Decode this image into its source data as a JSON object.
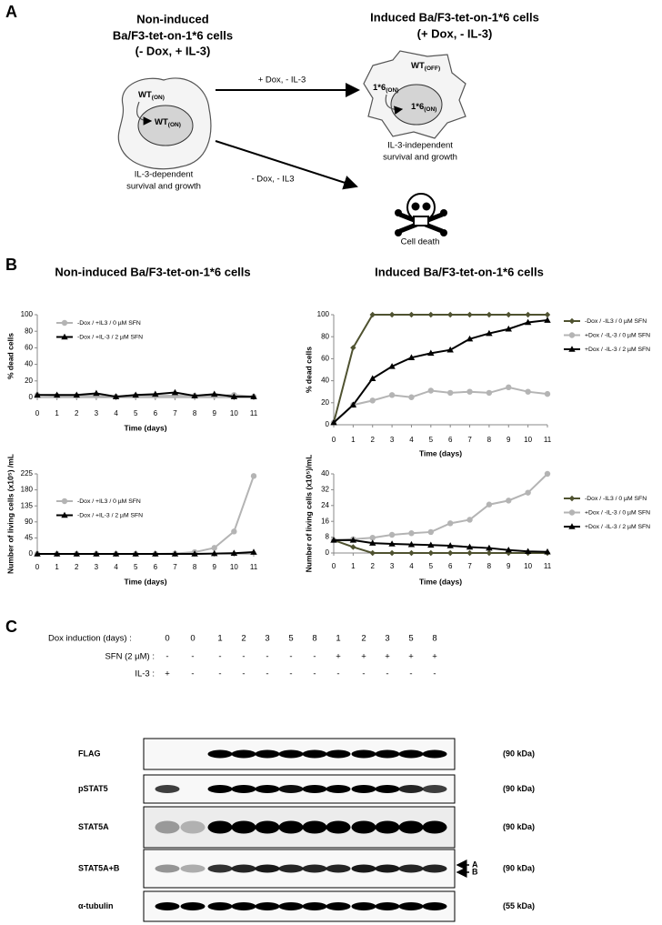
{
  "panel_a": {
    "label": "A",
    "left_title": [
      "Non-induced",
      "Ba/F3-tet-on-1*6 cells",
      "(- Dox, + IL-3)"
    ],
    "right_title": [
      "Induced Ba/F3-tet-on-1*6 cells",
      "(+ Dox, - IL-3)"
    ],
    "arrow_top": "+ Dox, - IL-3",
    "arrow_bottom": "- Dox, - IL3",
    "left_cell": {
      "outer": {
        "main": "WT",
        "sub": "(ON)"
      },
      "inner": {
        "main": "WT",
        "sub": "(ON)"
      },
      "caption": [
        "IL-3-dependent",
        "survival and growth"
      ]
    },
    "right_cell": {
      "wt": {
        "main": "WT",
        "sub": "(OFF)"
      },
      "outer": {
        "main": "1*6",
        "sub": "(ON)"
      },
      "inner": {
        "main": "1*6",
        "sub": "(ON)"
      },
      "caption": [
        "IL-3-independent",
        "survival and growth"
      ]
    },
    "death": "Cell death"
  },
  "panel_b": {
    "label": "B",
    "left_title": "Non-induced Ba/F3-tet-on-1*6 cells",
    "right_title": "Induced Ba/F3-tet-on-1*6 cells"
  },
  "chart_data": [
    {
      "type": "line",
      "xlabel": "Time (days)",
      "ylabel": "% dead cells",
      "x": [
        0,
        1,
        2,
        3,
        4,
        5,
        6,
        7,
        8,
        9,
        10,
        11
      ],
      "xlim": [
        0,
        11
      ],
      "xticks": [
        0,
        1,
        2,
        3,
        4,
        5,
        6,
        7,
        8,
        9,
        10,
        11
      ],
      "ylim": [
        0,
        100
      ],
      "yticks": [
        0,
        20,
        40,
        60,
        80,
        100
      ],
      "series": [
        {
          "name": "-Dox / +IL3  / 0 µM SFN",
          "color": "#b4b4b4",
          "marker": "circle",
          "values": [
            3,
            2,
            2,
            2,
            1,
            2,
            2,
            2,
            2,
            2,
            3,
            1
          ]
        },
        {
          "name": "-Dox / +IL-3  / 2 µM SFN",
          "color": "#000000",
          "marker": "triangle",
          "values": [
            3,
            3,
            3,
            5,
            1,
            3,
            4,
            6,
            2,
            4,
            1,
            1
          ]
        }
      ]
    },
    {
      "type": "line",
      "xlabel": "Time (days)",
      "ylabel": "% dead cells",
      "x": [
        0,
        1,
        2,
        3,
        4,
        5,
        6,
        7,
        8,
        9,
        10,
        11
      ],
      "xlim": [
        0,
        11
      ],
      "xticks": [
        0,
        1,
        2,
        3,
        4,
        5,
        6,
        7,
        8,
        9,
        10,
        11
      ],
      "ylim": [
        0,
        100
      ],
      "yticks": [
        0,
        20,
        40,
        60,
        80,
        100
      ],
      "series": [
        {
          "name": "-Dox / -IL3  / 0 µM SFN",
          "color": "#4f5230",
          "marker": "diamond",
          "values": [
            2,
            70,
            100,
            100,
            100,
            100,
            100,
            100,
            100,
            100,
            100,
            100
          ]
        },
        {
          "name": "+Dox / -IL-3  / 0 µM SFN",
          "color": "#b4b4b4",
          "marker": "circle",
          "values": [
            2,
            18,
            22,
            27,
            25,
            31,
            29,
            30,
            29,
            34,
            30,
            28
          ]
        },
        {
          "name": "+Dox / -IL-3  / 2 µM SFN",
          "color": "#000000",
          "marker": "triangle",
          "values": [
            2,
            18,
            42,
            53,
            61,
            65,
            68,
            78,
            83,
            87,
            93,
            95
          ]
        }
      ]
    },
    {
      "type": "line",
      "xlabel": "Time (days)",
      "ylabel": "Number of living cells (x10⁵) /mL",
      "x": [
        0,
        1,
        2,
        3,
        4,
        5,
        6,
        7,
        8,
        9,
        10,
        11
      ],
      "xlim": [
        0,
        11
      ],
      "xticks": [
        0,
        1,
        2,
        3,
        4,
        5,
        6,
        7,
        8,
        9,
        10,
        11
      ],
      "ylim": [
        0,
        225
      ],
      "yticks": [
        0,
        45,
        90,
        135,
        180,
        225
      ],
      "series": [
        {
          "name": "-Dox / +IL3  / 0 µM SFN",
          "color": "#b4b4b4",
          "marker": "circle",
          "values": [
            0,
            0,
            0,
            0,
            0,
            0,
            0,
            1,
            5,
            17,
            63,
            219
          ]
        },
        {
          "name": "-Dox / +IL-3  / 2 µM SFN",
          "color": "#000000",
          "marker": "triangle",
          "values": [
            0,
            0,
            0,
            0,
            0,
            0,
            0,
            0,
            0,
            1,
            2,
            5
          ]
        }
      ]
    },
    {
      "type": "line",
      "xlabel": "Time (days)",
      "ylabel": "Number of living cells (x10⁵)/mL",
      "x": [
        0,
        1,
        2,
        3,
        4,
        5,
        6,
        7,
        8,
        9,
        10,
        11
      ],
      "xlim": [
        0,
        11
      ],
      "xticks": [
        0,
        1,
        2,
        3,
        4,
        5,
        6,
        7,
        8,
        9,
        10,
        11
      ],
      "ylim": [
        0,
        40
      ],
      "yticks": [
        0,
        8,
        16,
        24,
        32,
        40
      ],
      "series": [
        {
          "name": "-Dox / -IL3  / 0 µM SFN",
          "color": "#4f5230",
          "marker": "diamond",
          "values": [
            6.5,
            3,
            0,
            0,
            0,
            0,
            0,
            0,
            0,
            0,
            0,
            0
          ]
        },
        {
          "name": "+Dox / -IL-3  / 0 µM SFN",
          "color": "#b4b4b4",
          "marker": "circle",
          "values": [
            6.5,
            7,
            7.7,
            9.2,
            10,
            10.6,
            15,
            16.8,
            24.5,
            26.5,
            30.5,
            40
          ]
        },
        {
          "name": "+Dox / -IL-3  / 2 µM SFN",
          "color": "#000000",
          "marker": "triangle",
          "values": [
            6.5,
            6.5,
            5,
            4.6,
            4.3,
            4,
            3.7,
            3,
            2.5,
            1.5,
            0.8,
            0.6
          ]
        }
      ]
    }
  ],
  "panel_c": {
    "label": "C",
    "rows": [
      {
        "label": "Dox induction (days) :",
        "values": [
          "0",
          "0",
          "1",
          "2",
          "3",
          "5",
          "8",
          "1",
          "2",
          "3",
          "5",
          "8"
        ]
      },
      {
        "label": "SFN (2 µM) :",
        "values": [
          "-",
          "-",
          "-",
          "-",
          "-",
          "-",
          "-",
          "+",
          "+",
          "+",
          "+",
          "+"
        ]
      },
      {
        "label": "IL-3 :",
        "values": [
          "+",
          "-",
          "-",
          "-",
          "-",
          "-",
          "-",
          "-",
          "-",
          "-",
          "-",
          "-"
        ]
      }
    ],
    "blots": [
      {
        "name": "FLAG",
        "size": "(90 kDa)"
      },
      {
        "name": "pSTAT5",
        "size": "(90 kDa)"
      },
      {
        "name": "STAT5A",
        "size": "(90 kDa)"
      },
      {
        "name": "STAT5A+B",
        "size": "(90 kDa)",
        "markers": [
          "A",
          "B"
        ]
      },
      {
        "name": "α-tubulin",
        "size": "(55 kDa)"
      }
    ]
  }
}
